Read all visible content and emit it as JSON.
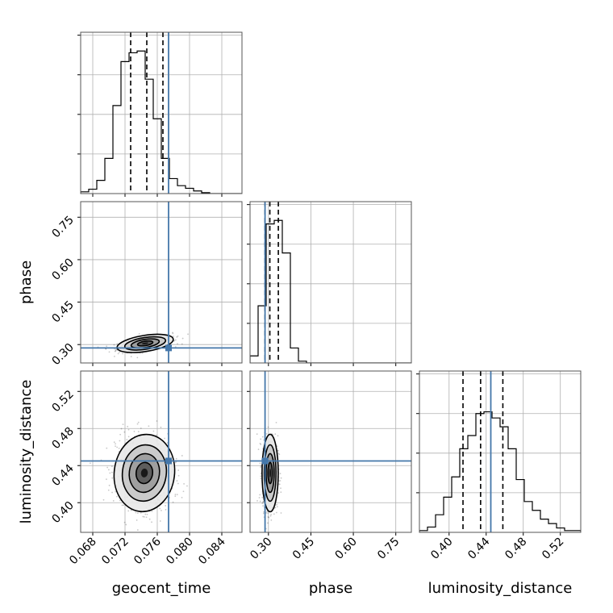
{
  "chart_data": {
    "type": "corner",
    "parameters": [
      "geocent_time",
      "phase",
      "luminosity_distance"
    ],
    "axis_labels": {
      "geocent_time": "geocent_time",
      "phase": "phase",
      "luminosity_distance": "luminosity_distance"
    },
    "truths": {
      "geocent_time": 0.0774,
      "phase": 0.288,
      "luminosity_distance": 0.445
    },
    "quantiles": {
      "geocent_time": [
        0.0727,
        0.0747,
        0.0767
      ],
      "phase": [
        0.288,
        0.305,
        0.335
      ],
      "luminosity_distance": [
        0.415,
        0.434,
        0.458
      ]
    },
    "ranges": {
      "geocent_time": [
        0.0665,
        0.0865
      ],
      "phase": [
        0.235,
        0.805
      ],
      "luminosity_distance": [
        0.368,
        0.542
      ]
    },
    "ticks": {
      "geocent_time": {
        "values": [
          0.068,
          0.072,
          0.076,
          0.08,
          0.084
        ],
        "labels": [
          "0.068",
          "0.072",
          "0.076",
          "0.080",
          "0.084"
        ]
      },
      "phase": {
        "values": [
          0.3,
          0.45,
          0.6,
          0.75
        ],
        "labels": [
          "0.30",
          "0.45",
          "0.60",
          "0.75"
        ]
      },
      "luminosity_distance": {
        "values": [
          0.4,
          0.44,
          0.48,
          0.52
        ],
        "labels": [
          "0.40",
          "0.44",
          "0.48",
          "0.52"
        ]
      }
    },
    "histograms": {
      "geocent_time": {
        "bin_start": 0.0665,
        "bin_width": 0.001,
        "counts": [
          2,
          5,
          15,
          40,
          100,
          150,
          160,
          162,
          130,
          85,
          40,
          17,
          9,
          6,
          3,
          1,
          0,
          0,
          0,
          0
        ]
      },
      "phase": {
        "bin_start": 0.235,
        "bin_width": 0.0285,
        "counts": [
          8,
          65,
          158,
          162,
          125,
          17,
          2,
          0,
          0,
          0,
          0,
          0,
          0,
          0,
          0,
          0,
          0,
          0,
          0,
          0
        ]
      },
      "luminosity_distance": {
        "bin_start": 0.368,
        "bin_width": 0.0087,
        "counts": [
          2,
          6,
          20,
          40,
          63,
          95,
          110,
          135,
          137,
          130,
          120,
          95,
          60,
          35,
          25,
          15,
          10,
          5,
          2,
          2
        ]
      }
    },
    "density_2d": [
      {
        "x": "geocent_time",
        "y": "phase",
        "center": [
          0.0745,
          0.304
        ],
        "sigma": [
          0.0016,
          0.013
        ],
        "correlation": 0.55
      },
      {
        "x": "geocent_time",
        "y": "luminosity_distance",
        "center": [
          0.0744,
          0.432
        ],
        "sigma": [
          0.0017,
          0.019
        ],
        "correlation": -0.1
      },
      {
        "x": "phase",
        "y": "luminosity_distance",
        "center": [
          0.306,
          0.432
        ],
        "sigma": [
          0.013,
          0.019
        ],
        "correlation": 0.0
      }
    ],
    "grid": true,
    "colors": {
      "truth": "#4477aa",
      "hist": "#000000",
      "grid": "#b0b0b0"
    }
  }
}
